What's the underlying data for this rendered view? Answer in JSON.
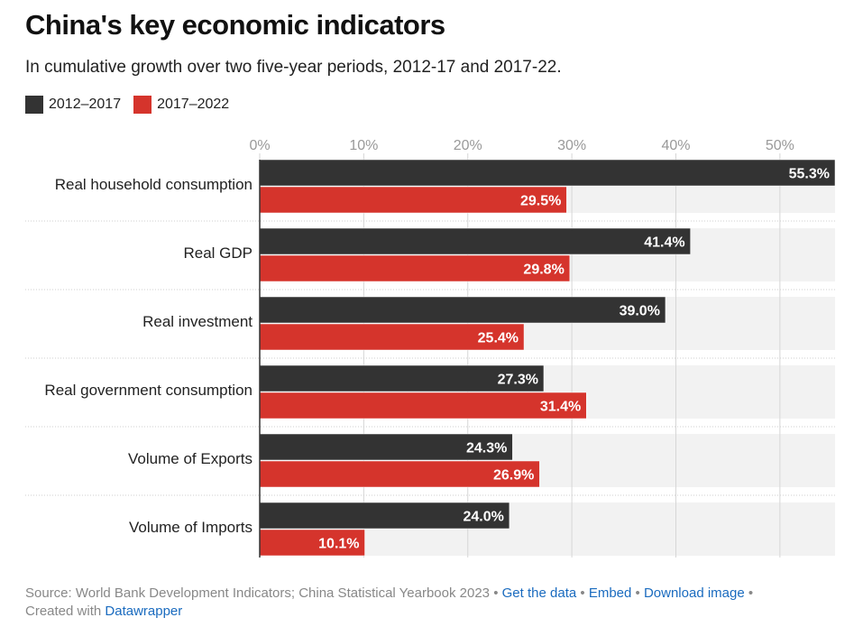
{
  "title": "China's key economic indicators",
  "subtitle": "In cumulative growth over two five-year periods, 2012-17 and 2017-22.",
  "legend": [
    {
      "label": "2012–2017",
      "color": "#333333"
    },
    {
      "label": "2017–2022",
      "color": "#d5342c"
    }
  ],
  "chart_data": {
    "type": "bar",
    "orientation": "horizontal",
    "categories": [
      "Real household consumption",
      "Real GDP",
      "Real investment",
      "Real government consumption",
      "Volume of Exports",
      "Volume of Imports"
    ],
    "series": [
      {
        "name": "2012–2017",
        "color": "#333333",
        "values": [
          55.3,
          41.4,
          39.0,
          27.3,
          24.3,
          24.0
        ],
        "labels": [
          "55.3%",
          "41.4%",
          "39.0%",
          "27.3%",
          "24.3%",
          "24.0%"
        ]
      },
      {
        "name": "2017–2022",
        "color": "#d5342c",
        "values": [
          29.5,
          29.8,
          25.4,
          31.4,
          26.9,
          10.1
        ],
        "labels": [
          "29.5%",
          "29.8%",
          "25.4%",
          "31.4%",
          "26.9%",
          "10.1%"
        ]
      }
    ],
    "xticks": [
      0,
      10,
      20,
      30,
      40,
      50
    ],
    "xtick_labels": [
      "0%",
      "10%",
      "20%",
      "30%",
      "40%",
      "50%"
    ],
    "xlim": [
      0,
      55.3
    ],
    "grid": true,
    "legend_position": "top-left"
  },
  "footer": {
    "source": "Source: World Bank Development Indicators; China Statistical Yearbook 2023",
    "bullet": "•",
    "get_data": "Get the data",
    "embed": "Embed",
    "download": "Download image",
    "created_with": "Created with",
    "datawrapper": "Datawrapper"
  }
}
